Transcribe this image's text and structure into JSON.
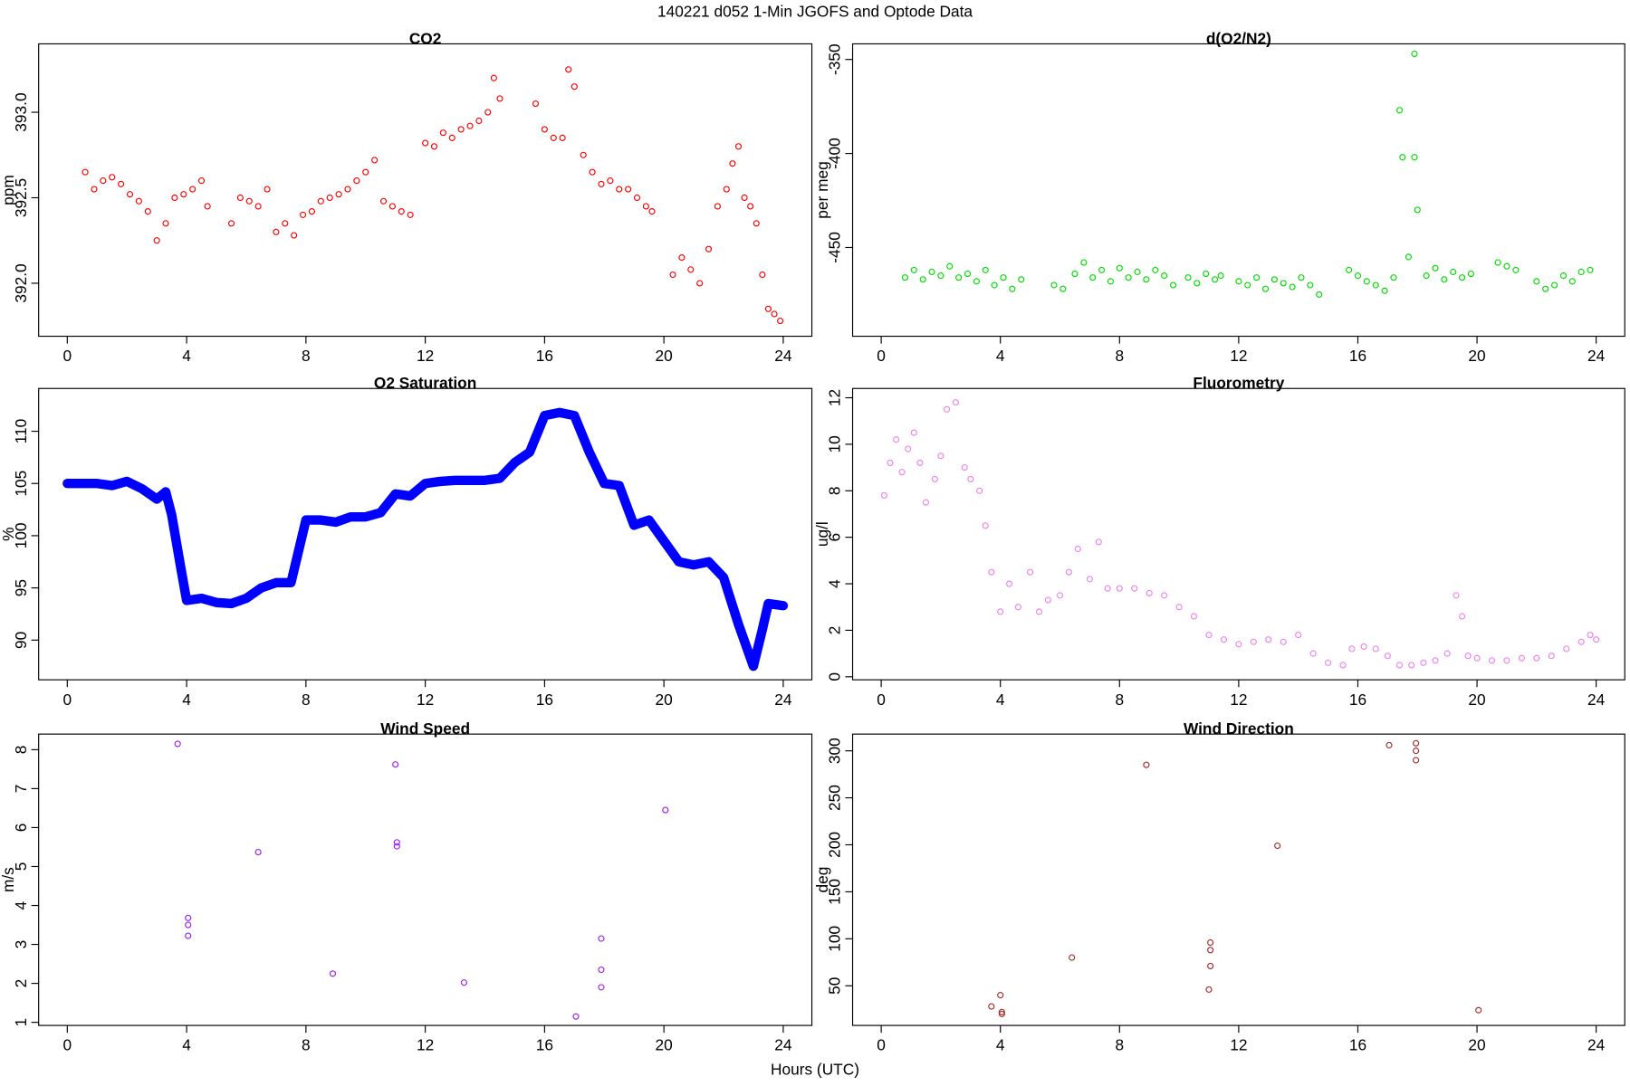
{
  "title": "140221   d052   1-Min  JGOFS and Optode Data",
  "xlabel": "Hours (UTC)",
  "chart_data": [
    {
      "type": "scatter",
      "title": "CO2",
      "ylabel": "ppm",
      "color": "#ff0000",
      "x": [
        0.6,
        0.9,
        1.2,
        1.5,
        1.8,
        2.1,
        2.4,
        2.7,
        3.0,
        3.3,
        3.6,
        3.9,
        4.2,
        4.5,
        4.7,
        5.5,
        5.8,
        6.1,
        6.4,
        6.7,
        7.0,
        7.3,
        7.6,
        7.9,
        8.2,
        8.5,
        8.8,
        9.1,
        9.4,
        9.7,
        10.0,
        10.3,
        10.6,
        10.9,
        11.2,
        11.5,
        12.0,
        12.3,
        12.6,
        12.9,
        13.2,
        13.5,
        13.8,
        14.1,
        14.3,
        14.5,
        15.7,
        16.0,
        16.3,
        16.6,
        16.8,
        17.0,
        17.3,
        17.6,
        17.9,
        18.2,
        18.5,
        18.8,
        19.1,
        19.4,
        19.6,
        20.3,
        20.6,
        20.9,
        21.2,
        21.5,
        21.8,
        22.1,
        22.3,
        22.5,
        22.7,
        22.9,
        23.1,
        23.3,
        23.5,
        23.7,
        23.9
      ],
      "values": [
        392.65,
        392.55,
        392.6,
        392.62,
        392.58,
        392.52,
        392.48,
        392.42,
        392.25,
        392.35,
        392.5,
        392.52,
        392.55,
        392.6,
        392.45,
        392.35,
        392.5,
        392.48,
        392.45,
        392.55,
        392.3,
        392.35,
        392.28,
        392.4,
        392.42,
        392.48,
        392.5,
        392.52,
        392.55,
        392.6,
        392.65,
        392.72,
        392.48,
        392.45,
        392.42,
        392.4,
        392.82,
        392.8,
        392.88,
        392.85,
        392.9,
        392.92,
        392.95,
        393.0,
        393.2,
        393.08,
        393.05,
        392.9,
        392.85,
        392.85,
        393.25,
        393.15,
        392.75,
        392.65,
        392.58,
        392.6,
        392.55,
        392.55,
        392.5,
        392.45,
        392.42,
        392.05,
        392.15,
        392.08,
        392.0,
        392.2,
        392.45,
        392.55,
        392.7,
        392.8,
        392.5,
        392.45,
        392.35,
        392.05,
        391.85,
        391.82,
        391.78
      ],
      "xlim": [
        -0.96,
        24.96
      ],
      "xticks": [
        0,
        4,
        8,
        12,
        16,
        20,
        24
      ],
      "ylim": [
        391.69,
        393.4
      ],
      "yticks": [
        {
          "value": 392,
          "label": "392.0"
        },
        392.5,
        {
          "value": 393,
          "label": "393.0"
        }
      ]
    },
    {
      "type": "scatter",
      "title": "d(O2/N2)",
      "ylabel": "per meg",
      "color": "#00dd00",
      "x": [
        0.8,
        1.1,
        1.4,
        1.7,
        2.0,
        2.3,
        2.6,
        2.9,
        3.2,
        3.5,
        3.8,
        4.1,
        4.4,
        4.7,
        5.8,
        6.1,
        6.5,
        6.8,
        7.1,
        7.4,
        7.7,
        8.0,
        8.3,
        8.6,
        8.9,
        9.2,
        9.5,
        9.8,
        10.3,
        10.6,
        10.9,
        11.2,
        11.4,
        12.0,
        12.3,
        12.6,
        12.9,
        13.2,
        13.5,
        13.8,
        14.1,
        14.4,
        14.7,
        15.7,
        16.0,
        16.3,
        16.6,
        16.9,
        17.2,
        17.4,
        17.5,
        17.7,
        17.9,
        17.9,
        18.0,
        18.3,
        18.6,
        18.9,
        19.2,
        19.5,
        19.8,
        20.7,
        21.0,
        21.3,
        22.0,
        22.3,
        22.6,
        22.9,
        23.2,
        23.5,
        23.8
      ],
      "values": [
        -466,
        -462,
        -467,
        -463,
        -465,
        -460,
        -466,
        -464,
        -468,
        -462,
        -470,
        -466,
        -472,
        -467,
        -470,
        -472,
        -464,
        -458,
        -466,
        -462,
        -468,
        -461,
        -466,
        -463,
        -467,
        -462,
        -465,
        -470,
        -466,
        -469,
        -464,
        -467,
        -465,
        -468,
        -470,
        -466,
        -472,
        -467,
        -469,
        -471,
        -466,
        -470,
        -475,
        -462,
        -465,
        -468,
        -470,
        -473,
        -466,
        -377,
        -402,
        -455,
        -347,
        -402,
        -430,
        -465,
        -461,
        -467,
        -463,
        -466,
        -464,
        -458,
        -460,
        -462,
        -468,
        -472,
        -470,
        -465,
        -468,
        -463,
        -462
      ],
      "xlim": [
        -0.96,
        24.96
      ],
      "xticks": [
        0,
        4,
        8,
        12,
        16,
        20,
        24
      ],
      "ylim": [
        -497.2,
        -341.7
      ],
      "yticks": [
        -450,
        -400,
        -350
      ]
    },
    {
      "type": "line",
      "title": "O2 Saturation",
      "ylabel": "%",
      "color": "#0000ff",
      "x": [
        0,
        0.5,
        1,
        1.5,
        2,
        2.5,
        3,
        3.3,
        3.5,
        3.8,
        4,
        4.5,
        5,
        5.5,
        6,
        6.5,
        7,
        7.5,
        8,
        8.5,
        9,
        9.5,
        10,
        10.5,
        11,
        11.5,
        12,
        12.5,
        13,
        13.5,
        14,
        14.5,
        15,
        15.5,
        16,
        16.5,
        17,
        17.5,
        18,
        18.5,
        19,
        19.5,
        20,
        20.5,
        21,
        21.5,
        22,
        22.5,
        23,
        23.3,
        23.5,
        24
      ],
      "values": [
        105,
        105,
        105,
        104.8,
        105.2,
        104.5,
        103.5,
        104.2,
        102,
        97,
        93.8,
        94,
        93.6,
        93.5,
        94,
        95,
        95.5,
        95.5,
        101.5,
        101.5,
        101.3,
        101.8,
        101.8,
        102.2,
        104,
        103.8,
        105,
        105.2,
        105.3,
        105.3,
        105.3,
        105.5,
        107,
        108,
        111.5,
        111.8,
        111.5,
        108,
        105,
        104.8,
        101,
        101.5,
        99.5,
        97.5,
        97.2,
        97.5,
        96,
        91.5,
        87.5,
        91,
        93.5,
        93.3
      ],
      "xlim": [
        -0.96,
        24.96
      ],
      "xticks": [
        0,
        4,
        8,
        12,
        16,
        20,
        24
      ],
      "ylim": [
        86.2,
        114.1
      ],
      "yticks": [
        90,
        95,
        100,
        105,
        110
      ]
    },
    {
      "type": "scatter",
      "title": "Fluorometry",
      "ylabel": "ug/l",
      "color": "#ee82ee",
      "x": [
        0.1,
        0.3,
        0.5,
        0.7,
        0.9,
        1.1,
        1.3,
        1.5,
        1.8,
        2.0,
        2.2,
        2.5,
        2.8,
        3.0,
        3.3,
        3.5,
        3.7,
        4.0,
        4.3,
        4.6,
        5.0,
        5.3,
        5.6,
        6.0,
        6.3,
        6.6,
        7.0,
        7.3,
        7.6,
        8.0,
        8.5,
        9.0,
        9.5,
        10.0,
        10.5,
        11.0,
        11.5,
        12.0,
        12.5,
        13.0,
        13.5,
        14.0,
        14.5,
        15.0,
        15.5,
        15.8,
        16.2,
        16.6,
        17.0,
        17.4,
        17.8,
        18.2,
        18.6,
        19.0,
        19.3,
        19.5,
        19.7,
        20.0,
        20.5,
        21.0,
        21.5,
        22.0,
        22.5,
        23.0,
        23.5,
        23.8,
        24.0
      ],
      "values": [
        7.8,
        9.2,
        10.2,
        8.8,
        9.8,
        10.5,
        9.2,
        7.5,
        8.5,
        9.5,
        11.5,
        11.8,
        9.0,
        8.5,
        8.0,
        6.5,
        4.5,
        2.8,
        4.0,
        3.0,
        4.5,
        2.8,
        3.3,
        3.5,
        4.5,
        5.5,
        4.2,
        5.8,
        3.8,
        3.8,
        3.8,
        3.6,
        3.5,
        3.0,
        2.6,
        1.8,
        1.6,
        1.4,
        1.5,
        1.6,
        1.5,
        1.8,
        1.0,
        0.6,
        0.5,
        1.2,
        1.3,
        1.2,
        0.9,
        0.5,
        0.5,
        0.6,
        0.7,
        1.0,
        3.5,
        2.6,
        0.9,
        0.8,
        0.7,
        0.7,
        0.8,
        0.8,
        0.9,
        1.2,
        1.5,
        1.8,
        1.6
      ],
      "xlim": [
        -0.96,
        24.96
      ],
      "xticks": [
        0,
        4,
        8,
        12,
        16,
        20,
        24
      ],
      "ylim": [
        -0.13,
        12.4
      ],
      "yticks": [
        0,
        2,
        4,
        6,
        8,
        10,
        12
      ]
    },
    {
      "type": "scatter",
      "title": "Wind Speed",
      "ylabel": "m/s",
      "color": "#a020f0",
      "x": [
        3.7,
        4.05,
        4.05,
        4.05,
        6.4,
        8.9,
        11.0,
        11.05,
        11.05,
        13.3,
        17.05,
        17.9,
        17.9,
        17.9,
        20.05
      ],
      "values": [
        8.15,
        3.68,
        3.5,
        3.22,
        5.37,
        2.25,
        7.62,
        5.62,
        5.52,
        2.02,
        1.15,
        3.15,
        2.35,
        1.9,
        6.45
      ],
      "xlim": [
        -0.96,
        24.96
      ],
      "xticks": [
        0,
        4,
        8,
        12,
        16,
        20,
        24
      ],
      "ylim": [
        0.92,
        8.4
      ],
      "yticks": [
        1,
        2,
        3,
        4,
        5,
        6,
        7,
        8
      ]
    },
    {
      "type": "scatter",
      "title": "Wind Direction",
      "ylabel": "deg",
      "color": "#a52a2a",
      "x": [
        3.7,
        4.0,
        4.05,
        4.05,
        6.4,
        8.9,
        11.05,
        11.05,
        11.05,
        11.0,
        13.3,
        17.05,
        17.95,
        17.95,
        17.95,
        20.05
      ],
      "values": [
        28,
        40,
        22,
        20,
        80,
        285,
        96,
        88,
        71,
        46,
        199,
        306,
        308,
        300,
        290,
        24
      ],
      "xlim": [
        -0.96,
        24.96
      ],
      "xticks": [
        0,
        4,
        8,
        12,
        16,
        20,
        24
      ],
      "ylim": [
        7.8,
        317.8
      ],
      "yticks": [
        50,
        100,
        150,
        200,
        250,
        300
      ]
    }
  ]
}
